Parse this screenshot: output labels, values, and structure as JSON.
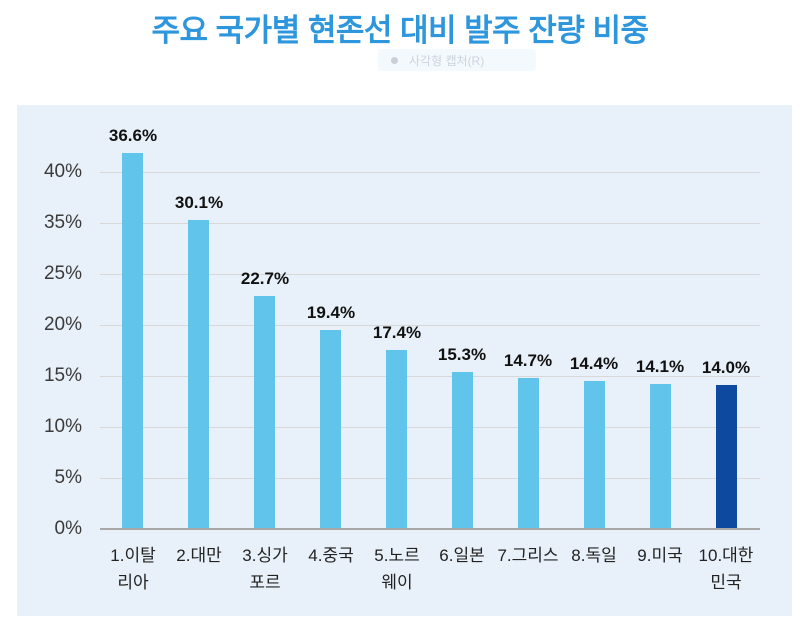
{
  "page": {
    "title": "주요 국가별 현존선 대비 발주 잔량 비중",
    "capture_tooltip": {
      "text": "사각형 캡처(R)"
    }
  },
  "chart_data": {
    "type": "bar",
    "title": "주요 국가별 현존선 대비 발주 잔량 비중",
    "categories": [
      "1.이탈리아",
      "2.대만",
      "3.싱가포르",
      "4.중국",
      "5.노르웨이",
      "6.일본",
      "7.그리스",
      "8.독일",
      "9.미국",
      "10.대한민국"
    ],
    "category_display_lines": [
      [
        "1.이탈",
        "리아"
      ],
      [
        "2.대만"
      ],
      [
        "3.싱가",
        "포르"
      ],
      [
        "4.중국"
      ],
      [
        "5.노르",
        "웨이"
      ],
      [
        "6.일본"
      ],
      [
        "7.그리스"
      ],
      [
        "8.독일"
      ],
      [
        "9.미국"
      ],
      [
        "10.대한",
        "민국"
      ]
    ],
    "values": [
      36.6,
      30.1,
      22.7,
      19.4,
      17.4,
      15.3,
      14.7,
      14.4,
      14.1,
      14.0
    ],
    "value_unit": "%",
    "highlight_index": 9,
    "y_axis": {
      "tick_labels_bottom_to_top": [
        "0%",
        "5%",
        "10%",
        "15%",
        "20%",
        "25%",
        "35%",
        "40%"
      ]
    },
    "legend": "none",
    "grid": "horizontal",
    "colors": {
      "bar": "#61c4eb",
      "highlight_bar": "#0d4a9f",
      "panel_background": "#e8f1f9",
      "gridline": "#d8d8d8",
      "axis_line": "#a8a8a8",
      "title": "#2e96dc",
      "value_label": "#111111",
      "tick_label": "#3a3a3a",
      "category_label": "#222222"
    }
  }
}
